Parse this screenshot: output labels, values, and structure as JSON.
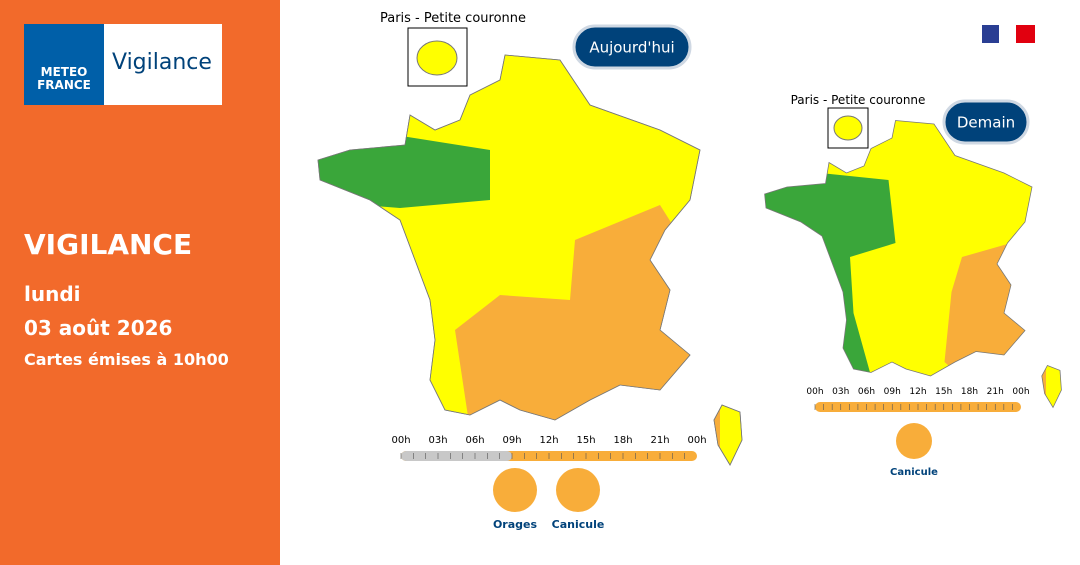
{
  "sidebar": {
    "logo": {
      "line1": "METEO",
      "line2": "FRANCE",
      "product": "Vigilance"
    },
    "title": "VIGILANCE",
    "day": "lundi",
    "date": "03 août 2026",
    "issued": "Cartes émises à 10h00"
  },
  "today": {
    "inset_label": "Paris - Petite couronne",
    "badge": "Aujourd'hui",
    "hours": [
      "00h",
      "03h",
      "06h",
      "09h",
      "12h",
      "15h",
      "18h",
      "21h",
      "00h"
    ],
    "hazards": [
      {
        "label": "Orages"
      },
      {
        "label": "Canicule"
      }
    ]
  },
  "tomorrow": {
    "inset_label": "Paris - Petite couronne",
    "badge": "Demain",
    "hours": [
      "00h",
      "03h",
      "06h",
      "09h",
      "12h",
      "15h",
      "18h",
      "21h",
      "00h"
    ],
    "hazards": [
      {
        "label": "Canicule"
      }
    ]
  }
}
